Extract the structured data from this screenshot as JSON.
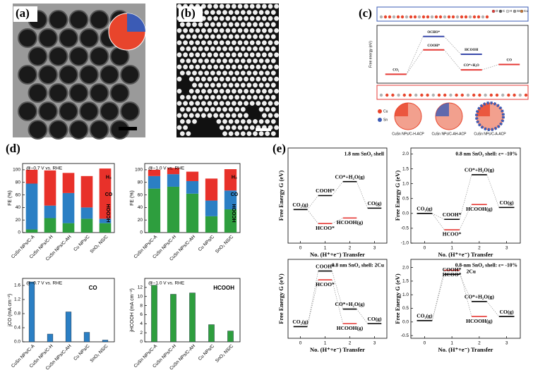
{
  "panel_labels": [
    "(a)",
    "(b)",
    "(c)",
    "(d)",
    "(e)"
  ],
  "chart_data": [
    {
      "type": "energy_diagram",
      "ylabel": "Free energy (eV)",
      "xlim": [
        -0.5,
        3.5
      ],
      "ylim": [
        -0.2,
        1.1
      ],
      "levels": [
        {
          "label": "CO₂",
          "x": 0,
          "value": 0,
          "color": "#e53935"
        },
        {
          "label": "COOH*",
          "x": 1,
          "value": 0.55,
          "color": "#e53935"
        },
        {
          "label": "OCHO*",
          "x": 1,
          "value": 0.85,
          "color": "#3949ab"
        },
        {
          "label": "HCOOH",
          "x": 2,
          "value": 0.45,
          "color": "#3949ab"
        },
        {
          "label": "CO*+H₂O",
          "x": 2,
          "value": 0.1,
          "color": "#e53935"
        },
        {
          "label": "CO",
          "x": 3,
          "value": 0.22,
          "color": "#e53935"
        }
      ],
      "atom_labels": [
        "O",
        "C",
        "H",
        "Sn",
        "Cu"
      ],
      "model_atoms": [
        "Cu",
        "Sn"
      ],
      "models": [
        "CuSn NPs/C-H-ACP",
        "CuSn NPs/C-AH-ACP",
        "CuSn NPs/C-A-ACP"
      ]
    },
    {
      "type": "stacked_bar",
      "annotation": "@−0.7 V vs. RHE",
      "ylabel": "FE (%)",
      "categories": [
        "CuSn NPs/C-A",
        "CuSn NPs/C-H",
        "CuSn NPs/C-AH",
        "Cu NPs/C",
        "SnO₂ NS/C"
      ],
      "ylim": [
        0,
        110
      ],
      "yticks": [
        0,
        20,
        40,
        60,
        80,
        100
      ],
      "series": [
        {
          "name": "HCOOH",
          "color": "#2e9e3e",
          "values": [
            5,
            23,
            15,
            22,
            15
          ]
        },
        {
          "name": "CO",
          "color": "#2b7fc4",
          "values": [
            73,
            20,
            48,
            18,
            7
          ]
        },
        {
          "name": "H₂",
          "color": "#e8312a",
          "values": [
            22,
            56,
            32,
            50,
            80
          ]
        }
      ]
    },
    {
      "type": "stacked_bar",
      "annotation": "@−1.0 V vs. RHE",
      "ylabel": "FE (%)",
      "categories": [
        "CuSn NPs/C-A",
        "CuSn NPs/C-H",
        "CuSn NPs/C-AH",
        "Cu NPs/C",
        "SnO₂ NS/C"
      ],
      "ylim": [
        0,
        110
      ],
      "yticks": [
        0,
        20,
        40,
        60,
        80,
        100
      ],
      "series": [
        {
          "name": "HCOOH",
          "color": "#2e9e3e",
          "values": [
            70,
            73,
            62,
            26,
            37
          ]
        },
        {
          "name": "CO",
          "color": "#2b7fc4",
          "values": [
            20,
            20,
            20,
            25,
            30
          ]
        },
        {
          "name": "H₂",
          "color": "#e8312a",
          "values": [
            10,
            10,
            15,
            35,
            34
          ]
        }
      ]
    },
    {
      "type": "bar",
      "annotation": "@−0.7 V vs. RHE",
      "ylabel": "jCO (mA cm⁻²)",
      "series_label": "CO",
      "color": "#2b7fc4",
      "categories": [
        "CuSn NPs/C-A",
        "CuSn NPs/C-H",
        "CuSn NPs/C-AH",
        "Cu NPs/C",
        "SnO₂ NS/C"
      ],
      "values": [
        1.7,
        0.22,
        0.85,
        0.27,
        0.05
      ],
      "ylim": [
        0,
        1.8
      ],
      "yticks": [
        {
          "value": 0,
          "label": "0.0"
        },
        0.4,
        0.8,
        1.2,
        1.6
      ]
    },
    {
      "type": "bar",
      "annotation": "@−1.0 V vs. RHE",
      "ylabel": "jHCOOH (mA cm⁻²)",
      "series_label": "HCOOH",
      "color": "#2e9e3e",
      "categories": [
        "CuSn NPs/C-A",
        "CuSn NPs/C-H",
        "CuSn NPs/C-AH",
        "Cu NPs/C",
        "SnO₂ NS/C"
      ],
      "values": [
        12.5,
        10.5,
        10.8,
        3.8,
        2.4
      ],
      "ylim": [
        0,
        14
      ],
      "yticks": [
        0,
        2,
        4,
        6,
        8,
        10,
        12
      ]
    },
    {
      "type": "energy_diagram",
      "title": "1.8 nm SnO₂ shell",
      "ylabel": "Free Energy G (eV)",
      "xlabel": "No. (H⁺+e⁻) Transfer",
      "xlim": [
        -0.5,
        3.5
      ],
      "xticks": [
        0,
        1,
        2,
        3
      ],
      "ylim": [
        -1.2,
        2.2
      ],
      "levels": [
        {
          "label": "CO₂(g)",
          "x": 0,
          "value": 0,
          "color": "#000000"
        },
        {
          "label": "COOH*",
          "x": 1,
          "value": 0.5,
          "color": "#000000"
        },
        {
          "label": "HCOO*",
          "x": 1,
          "value": -0.5,
          "color": "#e53935"
        },
        {
          "label": "CO*+H₂O(g)",
          "x": 2,
          "value": 1.0,
          "color": "#000000"
        },
        {
          "label": "HCOOH(g)",
          "x": 2,
          "value": -0.3,
          "color": "#e53935"
        },
        {
          "label": "CO(g)",
          "x": 3,
          "value": 0.05,
          "color": "#000000"
        }
      ]
    },
    {
      "type": "energy_diagram",
      "title": "0.8 nm SnO₂ shell: ε= -10%",
      "ylabel": "Free Energy G (eV)",
      "xlabel": "No. (H⁺+e⁻) Transfer",
      "xlim": [
        -0.5,
        3.5
      ],
      "xticks": [
        0,
        1,
        2,
        3
      ],
      "ylim": [
        -1.0,
        2.2
      ],
      "yticks": [
        {
          "value": -1,
          "label": "-1.0"
        },
        -0.5,
        {
          "value": 0,
          "label": "0.0"
        },
        0.5,
        {
          "value": 1,
          "label": "1.0"
        },
        1.5,
        {
          "value": 2,
          "label": "2.0"
        }
      ],
      "levels": [
        {
          "label": "CO₂(g)",
          "x": 0,
          "value": 0,
          "color": "#000000"
        },
        {
          "label": "COOH*",
          "x": 1,
          "value": -0.2,
          "color": "#000000"
        },
        {
          "label": "HCOO*",
          "x": 1,
          "value": -0.55,
          "color": "#e53935"
        },
        {
          "label": "CO*+H₂O(g)",
          "x": 2,
          "value": 1.3,
          "color": "#000000"
        },
        {
          "label": "HCOOH(g)",
          "x": 2,
          "value": 0.3,
          "color": "#e53935"
        },
        {
          "label": "CO(g)",
          "x": 3,
          "value": 0.2,
          "color": "#000000"
        }
      ]
    },
    {
      "type": "energy_diagram",
      "title": "0.8 nm SnO₂ shell: 2Cu",
      "ylabel": "Free Energy G (eV)",
      "xlabel": "No. (H⁺+e⁻) Transfer",
      "xlim": [
        -0.5,
        3.5
      ],
      "xticks": [
        0,
        1,
        2,
        3
      ],
      "ylim": [
        -0.4,
        2.3
      ],
      "levels": [
        {
          "label": "CO₂(g)",
          "x": 0,
          "value": 0,
          "color": "#000000"
        },
        {
          "label": "COOH*",
          "x": 1,
          "value": 1.9,
          "color": "#000000"
        },
        {
          "label": "HCOO*",
          "x": 1,
          "value": 1.6,
          "color": "#e53935"
        },
        {
          "label": "CO*+H₂O(g)",
          "x": 2,
          "value": 0.6,
          "color": "#000000"
        },
        {
          "label": "HCOOH(g)",
          "x": 2,
          "value": 0.1,
          "color": "#e53935"
        },
        {
          "label": "CO(g)",
          "x": 3,
          "value": 0.1,
          "color": "#000000"
        }
      ]
    },
    {
      "type": "energy_diagram",
      "title": "0.8-nm SnO₂ shell: ε= -10%",
      "subtitle": "2Cu",
      "ylabel": "Free Energy G (eV)",
      "xlabel": "No. (H⁺+e⁻) Transfer",
      "xlim": [
        -0.5,
        3.5
      ],
      "xticks": [
        0,
        1,
        2,
        3
      ],
      "ylim": [
        -0.6,
        2.3
      ],
      "yticks": [
        -0.5,
        {
          "value": 0,
          "label": "0.0"
        },
        0.5,
        {
          "value": 1,
          "label": "1.0"
        },
        1.5,
        {
          "value": 2,
          "label": "2.0"
        }
      ],
      "levels": [
        {
          "label": "CO₂(g)",
          "x": 0,
          "value": 0.05,
          "color": "#000000"
        },
        {
          "label": "HCOO*",
          "x": 1,
          "value": 1.9,
          "color": "#e53935"
        },
        {
          "label": "COOH*",
          "x": 1,
          "value": 1.75,
          "color": "#000000"
        },
        {
          "label": "CO*+H₂O(g)",
          "x": 2,
          "value": 0.75,
          "color": "#000000"
        },
        {
          "label": "HCOOH(g)",
          "x": 2,
          "value": 0.2,
          "color": "#e53935"
        },
        {
          "label": "CO(g)",
          "x": 3,
          "value": 0.2,
          "color": "#000000"
        }
      ]
    }
  ]
}
